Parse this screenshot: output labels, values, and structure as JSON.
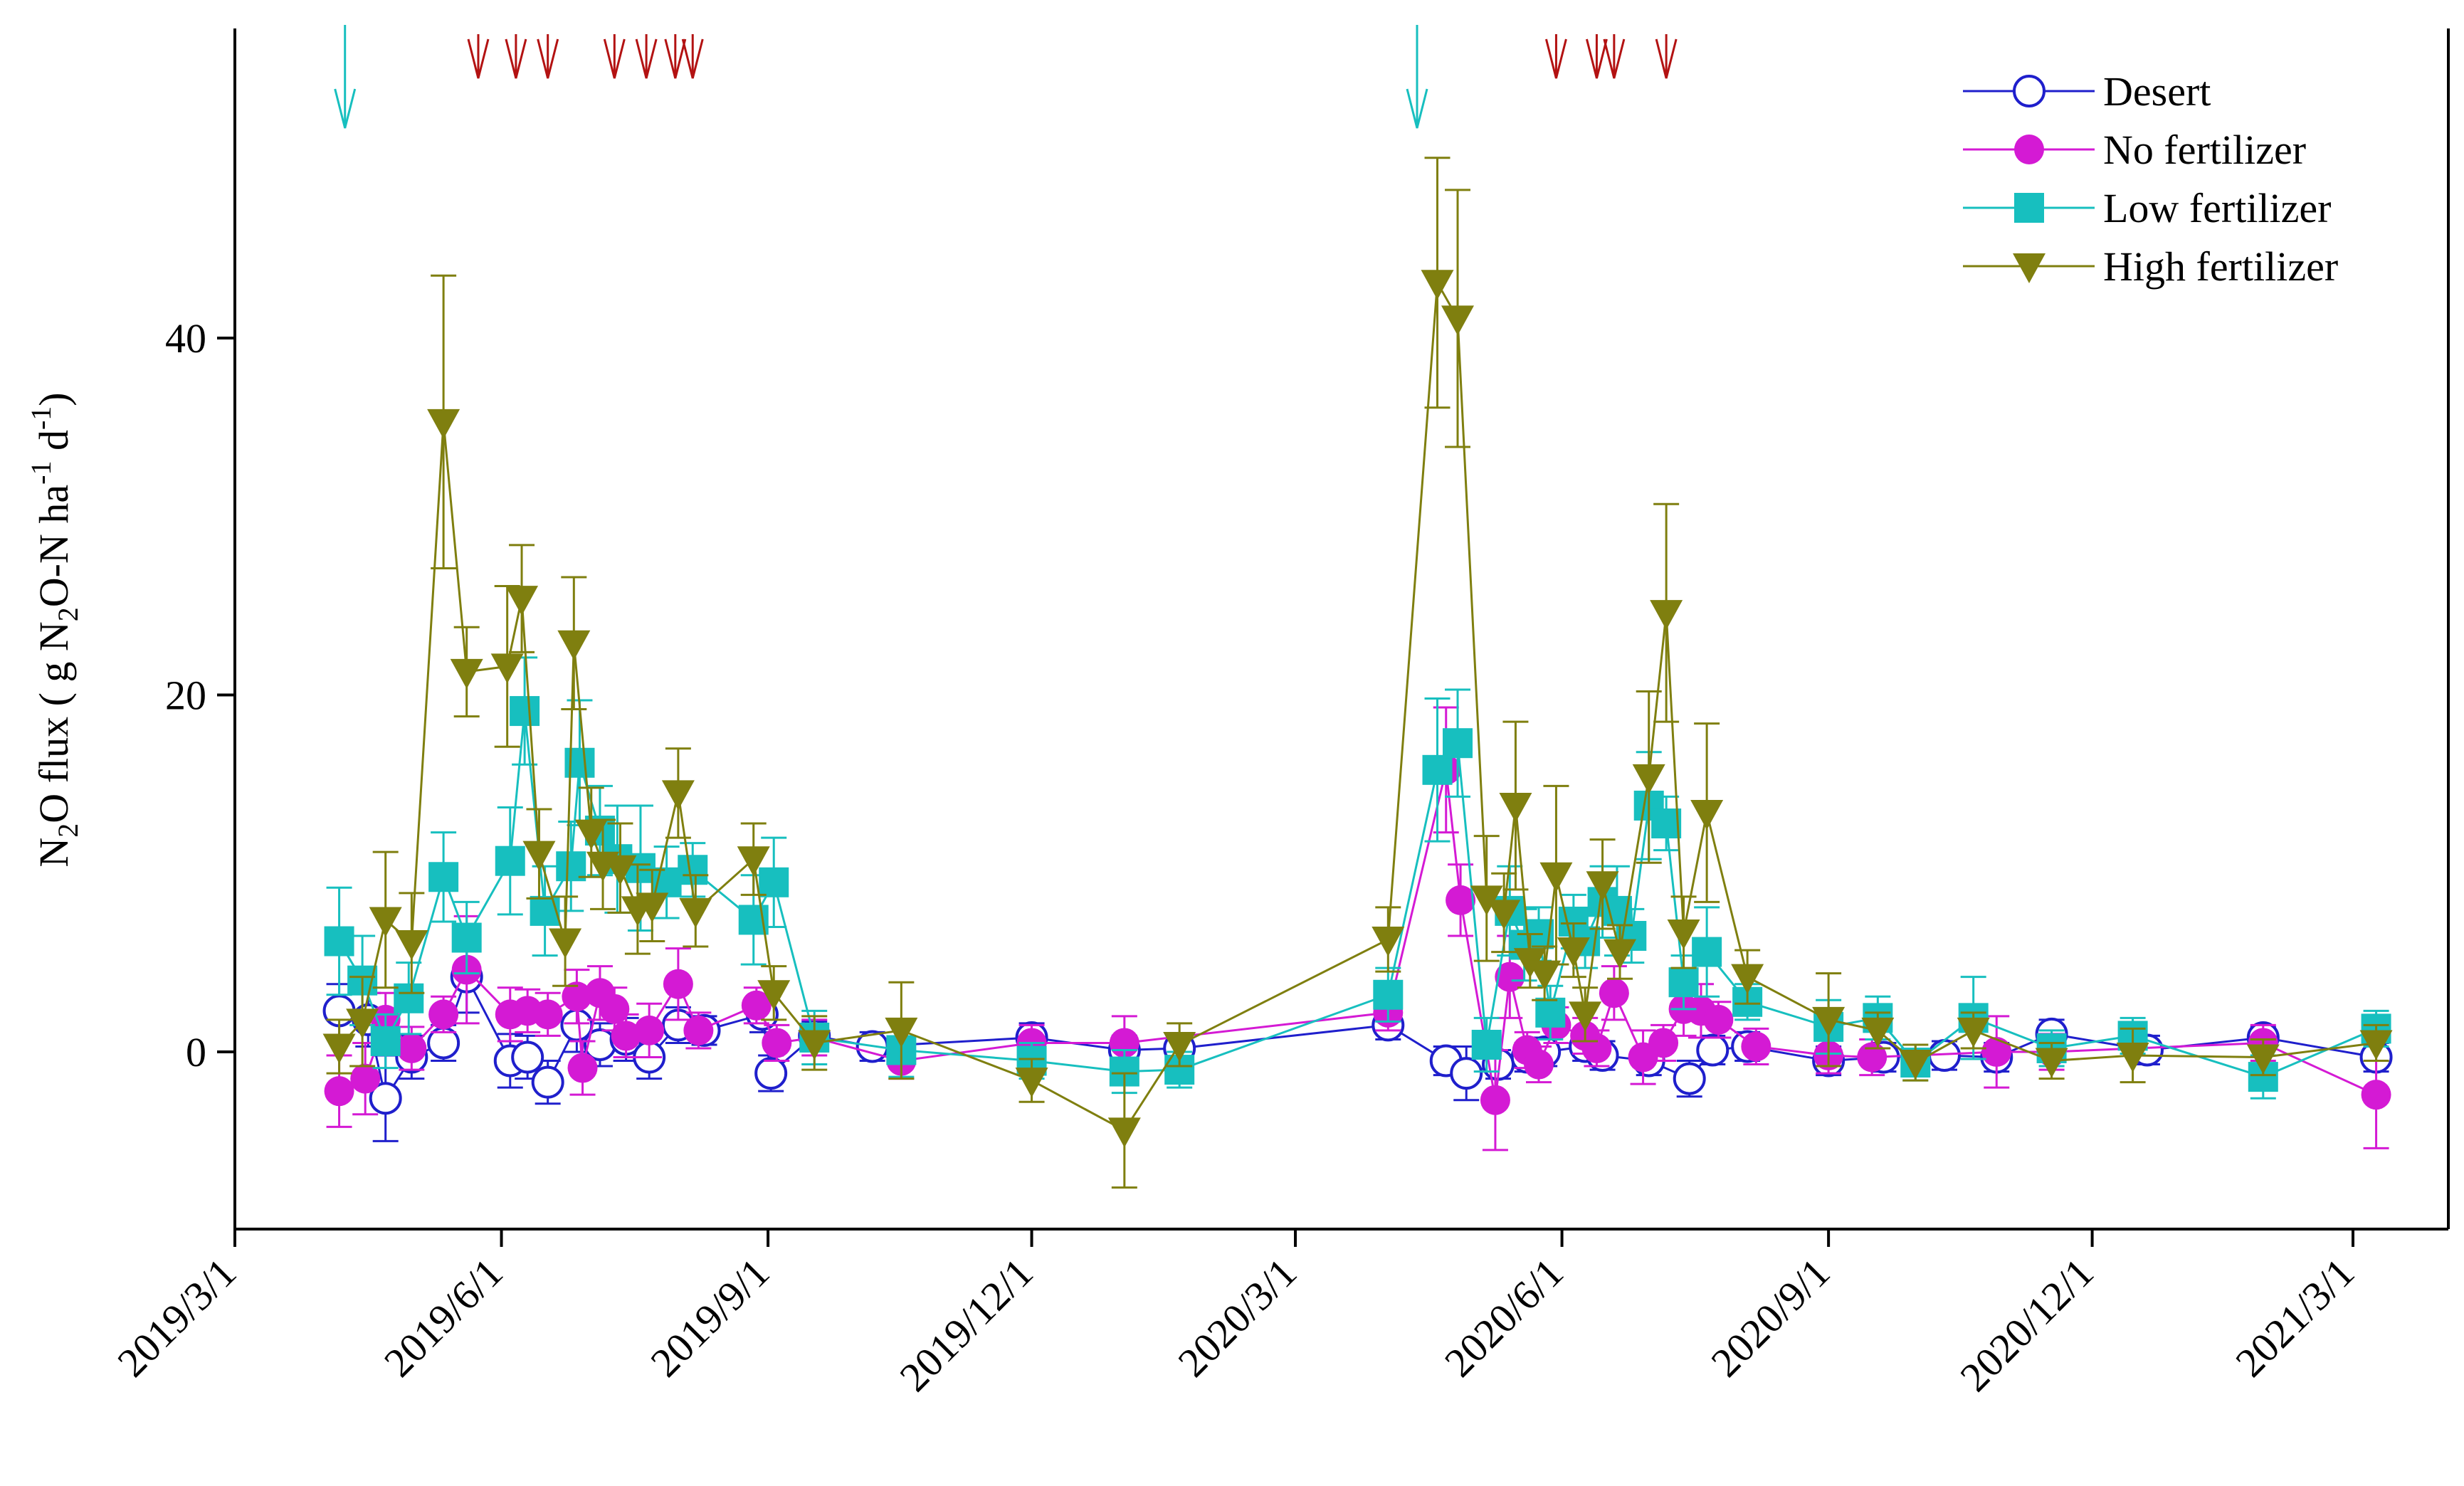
{
  "chart_data": {
    "type": "line",
    "title": "",
    "xlabel": "",
    "ylabel": {
      "prefix": "N",
      "sub1": "2",
      "mid": "O flux ( g N",
      "sub2": "2",
      "mid2": "O-N ha",
      "sup1": "-1",
      "mid3": " d",
      "sup2": "-1",
      "suffix": ")"
    },
    "ylim": [
      -10,
      56
    ],
    "yticks": [
      0,
      20,
      40
    ],
    "ytick_labels": [
      "0",
      "20",
      "40"
    ],
    "xlim_days": [
      0,
      740
    ],
    "xticks": [
      {
        "day": 0,
        "label": "2019/3/1"
      },
      {
        "day": 92,
        "label": "2019/6/1"
      },
      {
        "day": 184,
        "label": "2019/9/1"
      },
      {
        "day": 275,
        "label": "2019/12/1"
      },
      {
        "day": 366,
        "label": "2020/3/1"
      },
      {
        "day": 458,
        "label": "2020/6/1"
      },
      {
        "day": 550,
        "label": "2020/9/1"
      },
      {
        "day": 641,
        "label": "2020/12/1"
      },
      {
        "day": 731,
        "label": "2021/3/1"
      }
    ],
    "irrigation_arrow_days": [
      38,
      408
    ],
    "fertilizer_arrow_days": [
      84,
      97,
      108,
      131,
      142,
      152,
      158,
      456,
      470,
      476,
      494
    ],
    "colors": {
      "desert": "#1f1fcc",
      "no_fertilizer": "#d41ad4",
      "low_fertilizer": "#17bfbf",
      "high_fertilizer": "#7f7f0f",
      "irrigation_arrow": "#17bfbf",
      "fertilizer_arrow": "#b31212"
    },
    "series": [
      {
        "name": "Desert",
        "key": "desert",
        "marker": "open-circle",
        "points": [
          [
            36,
            2.3,
            1.5
          ],
          [
            46,
            1.8,
            1.5
          ],
          [
            52,
            -2.6,
            2.4
          ],
          [
            61,
            -0.3,
            1.2
          ],
          [
            72,
            0.5,
            1
          ],
          [
            80,
            4.2,
            2
          ],
          [
            95,
            -0.5,
            1.5
          ],
          [
            101,
            -0.3,
            1.2
          ],
          [
            108,
            -1.7,
            1.2
          ],
          [
            118,
            1.5,
            1.5
          ],
          [
            126,
            0.4,
            1.2
          ],
          [
            135,
            0.7,
            1.2
          ],
          [
            143,
            -0.3,
            1.2
          ],
          [
            153,
            1.5,
            1
          ],
          [
            162,
            1.2,
            0.8
          ],
          [
            182,
            2.1,
            1
          ],
          [
            185,
            -1.2,
            1
          ],
          [
            200,
            0.9,
            0.8
          ],
          [
            220,
            0.3,
            0.8
          ],
          [
            275,
            0.8,
            0.8
          ],
          [
            307,
            0.1,
            0.8
          ],
          [
            326,
            0.2,
            0.8
          ],
          [
            398,
            1.5,
            0.8
          ],
          [
            418,
            -0.5,
            0.8
          ],
          [
            425,
            -1.2,
            1.5
          ],
          [
            436,
            -0.7,
            0.8
          ],
          [
            446,
            -0.3,
            0.8
          ],
          [
            452,
            0,
            0.8
          ],
          [
            466,
            0.3,
            0.8
          ],
          [
            472,
            -0.2,
            0.8
          ],
          [
            488,
            -0.5,
            0.8
          ],
          [
            502,
            -1.5,
            1
          ],
          [
            510,
            0.1,
            0.8
          ],
          [
            522,
            0.3,
            0.8
          ],
          [
            550,
            -0.5,
            0.8
          ],
          [
            569,
            -0.3,
            0.8
          ],
          [
            590,
            -0.2,
            0.8
          ],
          [
            608,
            -0.3,
            0.8
          ],
          [
            627,
            1,
            0.8
          ],
          [
            660,
            0.1,
            0.8
          ],
          [
            700,
            0.8,
            0.6
          ],
          [
            739,
            -0.3,
            0.8
          ]
        ]
      },
      {
        "name": "No fertilizer",
        "key": "no_fertilizer",
        "marker": "filled-circle",
        "points": [
          [
            36,
            -2.2,
            2
          ],
          [
            45,
            -1.5,
            2
          ],
          [
            52,
            1.8,
            1.5
          ],
          [
            61,
            0.2,
            1.2
          ],
          [
            72,
            2.1,
            1
          ],
          [
            80,
            4.6,
            3
          ],
          [
            95,
            2.1,
            1.5
          ],
          [
            101,
            2.3,
            1.2
          ],
          [
            108,
            2.1,
            1.2
          ],
          [
            118,
            3.1,
            1.5
          ],
          [
            120,
            -0.9,
            1.5
          ],
          [
            126,
            3.3,
            1.5
          ],
          [
            131,
            2.4,
            1.2
          ],
          [
            135,
            0.9,
            1.2
          ],
          [
            143,
            1.2,
            1.5
          ],
          [
            153,
            3.8,
            2
          ],
          [
            160,
            1.2,
            1
          ],
          [
            180,
            2.6,
            1
          ],
          [
            187,
            0.5,
            1
          ],
          [
            200,
            0.8,
            1
          ],
          [
            230,
            -0.5,
            1
          ],
          [
            275,
            0.5,
            1
          ],
          [
            307,
            0.5,
            1.5
          ],
          [
            398,
            2.2,
            1
          ],
          [
            418,
            15.8,
            3.5
          ],
          [
            423,
            8.5,
            2
          ],
          [
            435,
            -2.7,
            2.8
          ],
          [
            440,
            4.2,
            2.3
          ],
          [
            446,
            0.1,
            1
          ],
          [
            450,
            -0.7,
            1
          ],
          [
            456,
            1.5,
            1
          ],
          [
            466,
            0.9,
            1
          ],
          [
            470,
            0.2,
            1
          ],
          [
            476,
            3.3,
            1.5
          ],
          [
            486,
            -0.3,
            1.5
          ],
          [
            493,
            0.5,
            1
          ],
          [
            500,
            2.4,
            1.5
          ],
          [
            506,
            2.3,
            1.5
          ],
          [
            512,
            1.8,
            1
          ],
          [
            525,
            0.3,
            1
          ],
          [
            550,
            -0.2,
            1
          ],
          [
            565,
            -0.3,
            1
          ],
          [
            608,
            0,
            2
          ],
          [
            627,
            0,
            1
          ],
          [
            700,
            0.5,
            1
          ],
          [
            739,
            -2.4,
            3
          ]
        ]
      },
      {
        "name": "Low fertilizer",
        "key": "low_fertilizer",
        "marker": "filled-square",
        "points": [
          [
            36,
            6.2,
            3
          ],
          [
            44,
            4,
            2.5
          ],
          [
            52,
            0.6,
            1.5
          ],
          [
            60,
            3,
            2
          ],
          [
            72,
            9.8,
            2.5
          ],
          [
            80,
            6.4,
            2
          ],
          [
            95,
            10.7,
            3
          ],
          [
            100,
            19.1,
            3
          ],
          [
            107,
            7.9,
            2.5
          ],
          [
            116,
            10.4,
            2.5
          ],
          [
            119,
            16.2,
            3.5
          ],
          [
            126,
            12.4,
            2.5
          ],
          [
            132,
            10.8,
            3
          ],
          [
            140,
            10.3,
            3.5
          ],
          [
            149,
            9.5,
            2
          ],
          [
            158,
            10.2,
            1.5
          ],
          [
            179,
            7.4,
            2.5
          ],
          [
            186,
            9.5,
            2.5
          ],
          [
            200,
            0.8,
            1.5
          ],
          [
            230,
            0.1,
            1.5
          ],
          [
            275,
            -0.5,
            1
          ],
          [
            307,
            -1.1,
            1.2
          ],
          [
            326,
            -1,
            1
          ],
          [
            398,
            3.2,
            1.5
          ],
          [
            415,
            15.8,
            4
          ],
          [
            422,
            17.3,
            3
          ],
          [
            432,
            0.4,
            1.5
          ],
          [
            440,
            7.9,
            2.5
          ],
          [
            445,
            6,
            2
          ],
          [
            450,
            6.6,
            1.5
          ],
          [
            454,
            2.2,
            1.5
          ],
          [
            462,
            7.3,
            1.5
          ],
          [
            466,
            6.2,
            1.5
          ],
          [
            472,
            8.4,
            2
          ],
          [
            477,
            7.9,
            2.5
          ],
          [
            482,
            6.5,
            1.5
          ],
          [
            488,
            13.8,
            3
          ],
          [
            494,
            12.8,
            1.5
          ],
          [
            500,
            3.9,
            1.5
          ],
          [
            508,
            5.6,
            2.5
          ],
          [
            522,
            2.8,
            1
          ],
          [
            550,
            1.4,
            1.5
          ],
          [
            567,
            1.9,
            1.2
          ],
          [
            580,
            -0.6,
            1
          ],
          [
            600,
            1.9,
            2.3
          ],
          [
            627,
            0.2,
            1
          ],
          [
            655,
            0.9,
            1
          ],
          [
            700,
            -1.4,
            1.2
          ],
          [
            739,
            1.3,
            1
          ]
        ]
      },
      {
        "name": "High fertilizer",
        "key": "high_fertilizer",
        "marker": "filled-triangle-down",
        "points": [
          [
            36,
            0.3,
            1.5
          ],
          [
            44,
            1.7,
            2.5
          ],
          [
            52,
            7.4,
            3.8
          ],
          [
            61,
            6.1,
            2.8
          ],
          [
            72,
            35.3,
            8.2
          ],
          [
            80,
            21.3,
            2.5
          ],
          [
            94,
            21.6,
            4.5
          ],
          [
            99,
            25.4,
            3
          ],
          [
            105,
            11.1,
            2.5
          ],
          [
            114,
            6.2,
            2.5
          ],
          [
            117,
            22.9,
            3.7
          ],
          [
            123,
            12.3,
            2.5
          ],
          [
            127,
            10.5,
            2.5
          ],
          [
            133,
            10.3,
            2.5
          ],
          [
            139,
            8,
            2.5
          ],
          [
            144,
            8.2,
            2
          ],
          [
            153,
            14.5,
            2.5
          ],
          [
            159,
            7.9,
            2
          ],
          [
            179,
            10.8,
            2
          ],
          [
            186,
            3.3,
            1.5
          ],
          [
            200,
            0.5,
            1.5
          ],
          [
            230,
            1.2,
            2.7
          ],
          [
            275,
            -1.6,
            1.2
          ],
          [
            307,
            -4.4,
            3.2
          ],
          [
            326,
            0.4,
            1.2
          ],
          [
            398,
            6.3,
            1.8
          ],
          [
            415,
            43.1,
            7
          ],
          [
            422,
            41.1,
            7.2
          ],
          [
            432,
            8.6,
            3.5
          ],
          [
            438,
            7.8,
            2.2
          ],
          [
            442,
            13.8,
            4.7
          ],
          [
            447,
            5.1,
            1.5
          ],
          [
            452,
            4.4,
            1.5
          ],
          [
            456,
            9.9,
            5
          ],
          [
            462,
            5.7,
            1.5
          ],
          [
            466,
            2.1,
            1.5
          ],
          [
            472,
            9.4,
            2.5
          ],
          [
            478,
            5.6,
            1.5
          ],
          [
            488,
            15.4,
            4.8
          ],
          [
            494,
            24.6,
            6.1
          ],
          [
            500,
            6.7,
            2
          ],
          [
            508,
            13.4,
            5
          ],
          [
            522,
            4.2,
            1.5
          ],
          [
            550,
            1.8,
            2.6
          ],
          [
            567,
            1.2,
            1
          ],
          [
            580,
            -0.6,
            1
          ],
          [
            600,
            1.2,
            1
          ],
          [
            627,
            -0.5,
            1
          ],
          [
            655,
            -0.2,
            1.5
          ],
          [
            700,
            -0.3,
            1
          ],
          [
            739,
            0.5,
            1
          ]
        ]
      }
    ],
    "legend": {
      "placement": "top-right",
      "entries": [
        "Desert",
        "No fertilizer",
        "Low fertilizer",
        "High fertilizer"
      ]
    }
  }
}
